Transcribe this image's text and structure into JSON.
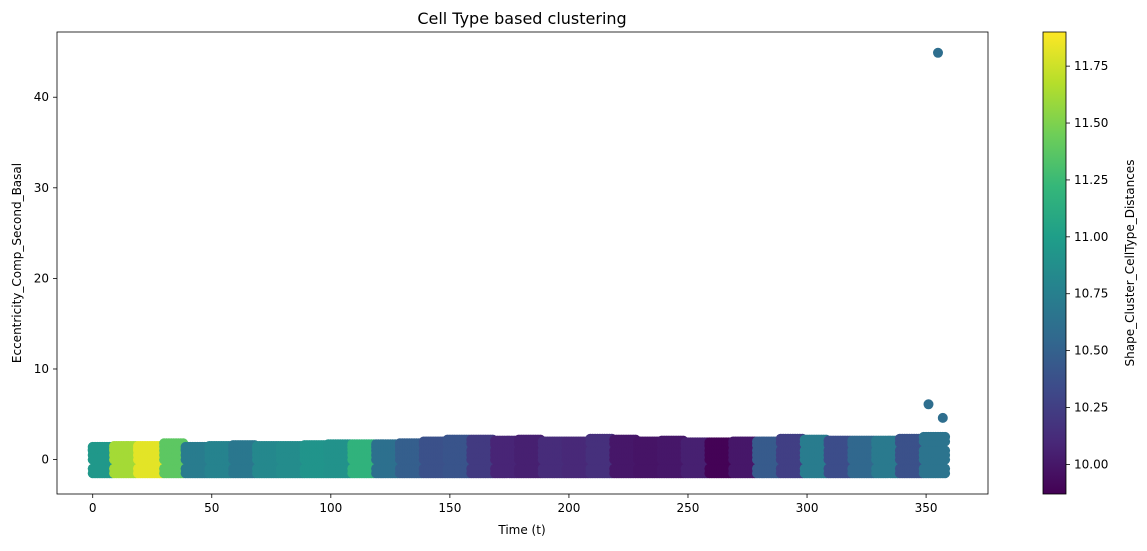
{
  "chart_data": {
    "type": "scatter",
    "title": "Cell Type based clustering",
    "xlabel": "Time (t)",
    "ylabel": "Eccentricity_Comp_Second_Basal",
    "xlim": [
      -15,
      376
    ],
    "ylim": [
      -3.8,
      47.2
    ],
    "xticks": [
      0,
      50,
      100,
      150,
      200,
      250,
      300,
      350
    ],
    "yticks": [
      0,
      10,
      20,
      30,
      40
    ],
    "grid": false,
    "colorbar": {
      "label": "Shape_Cluster_CellType_Distances",
      "colormap": "viridis",
      "range": [
        9.87,
        11.9
      ],
      "ticks": [
        10.0,
        10.25,
        10.5,
        10.75,
        11.0,
        11.25,
        11.5,
        11.75
      ],
      "tick_labels": [
        "10.00",
        "10.25",
        "10.50",
        "10.75",
        "11.00",
        "11.25",
        "11.50",
        "11.75"
      ]
    },
    "band": {
      "description_values": "per time-block color value; points span y from min to max each time step",
      "y_min": -1.5,
      "blocks": [
        {
          "t_start": 0,
          "t_end": 9,
          "c": 10.95,
          "y_max": 1.4
        },
        {
          "t_start": 9,
          "t_end": 19,
          "c": 11.62,
          "y_max": 1.5
        },
        {
          "t_start": 19,
          "t_end": 30,
          "c": 11.82,
          "y_max": 1.5
        },
        {
          "t_start": 30,
          "t_end": 39,
          "c": 11.38,
          "y_max": 1.8
        },
        {
          "t_start": 39,
          "t_end": 49,
          "c": 10.72,
          "y_max": 1.4
        },
        {
          "t_start": 49,
          "t_end": 59,
          "c": 10.78,
          "y_max": 1.5
        },
        {
          "t_start": 59,
          "t_end": 69,
          "c": 10.68,
          "y_max": 1.6
        },
        {
          "t_start": 69,
          "t_end": 79,
          "c": 10.82,
          "y_max": 1.5
        },
        {
          "t_start": 79,
          "t_end": 89,
          "c": 10.85,
          "y_max": 1.5
        },
        {
          "t_start": 89,
          "t_end": 99,
          "c": 10.92,
          "y_max": 1.6
        },
        {
          "t_start": 99,
          "t_end": 109,
          "c": 10.9,
          "y_max": 1.7
        },
        {
          "t_start": 109,
          "t_end": 119,
          "c": 11.18,
          "y_max": 1.7
        },
        {
          "t_start": 119,
          "t_end": 129,
          "c": 10.62,
          "y_max": 1.7
        },
        {
          "t_start": 129,
          "t_end": 139,
          "c": 10.48,
          "y_max": 1.8
        },
        {
          "t_start": 139,
          "t_end": 149,
          "c": 10.38,
          "y_max": 2.0
        },
        {
          "t_start": 149,
          "t_end": 159,
          "c": 10.4,
          "y_max": 2.2
        },
        {
          "t_start": 159,
          "t_end": 169,
          "c": 10.22,
          "y_max": 2.2
        },
        {
          "t_start": 169,
          "t_end": 179,
          "c": 10.08,
          "y_max": 2.1
        },
        {
          "t_start": 179,
          "t_end": 189,
          "c": 10.05,
          "y_max": 2.2
        },
        {
          "t_start": 189,
          "t_end": 199,
          "c": 10.12,
          "y_max": 2.0
        },
        {
          "t_start": 199,
          "t_end": 209,
          "c": 10.1,
          "y_max": 2.0
        },
        {
          "t_start": 209,
          "t_end": 219,
          "c": 10.15,
          "y_max": 2.3
        },
        {
          "t_start": 219,
          "t_end": 229,
          "c": 10.0,
          "y_max": 2.2
        },
        {
          "t_start": 229,
          "t_end": 239,
          "c": 9.98,
          "y_max": 2.0
        },
        {
          "t_start": 239,
          "t_end": 249,
          "c": 10.0,
          "y_max": 2.1
        },
        {
          "t_start": 249,
          "t_end": 259,
          "c": 10.05,
          "y_max": 1.9
        },
        {
          "t_start": 259,
          "t_end": 269,
          "c": 9.88,
          "y_max": 1.9
        },
        {
          "t_start": 269,
          "t_end": 279,
          "c": 10.0,
          "y_max": 2.0
        },
        {
          "t_start": 279,
          "t_end": 289,
          "c": 10.45,
          "y_max": 2.0
        },
        {
          "t_start": 289,
          "t_end": 299,
          "c": 10.25,
          "y_max": 2.3
        },
        {
          "t_start": 299,
          "t_end": 309,
          "c": 10.72,
          "y_max": 2.2
        },
        {
          "t_start": 309,
          "t_end": 319,
          "c": 10.35,
          "y_max": 2.1
        },
        {
          "t_start": 319,
          "t_end": 329,
          "c": 10.55,
          "y_max": 2.1
        },
        {
          "t_start": 329,
          "t_end": 339,
          "c": 10.7,
          "y_max": 2.1
        },
        {
          "t_start": 339,
          "t_end": 349,
          "c": 10.38,
          "y_max": 2.3
        },
        {
          "t_start": 349,
          "t_end": 359,
          "c": 10.65,
          "y_max": 2.5
        }
      ]
    },
    "outliers": [
      {
        "x": 355,
        "y": 44.9,
        "c": 10.6
      },
      {
        "x": 351,
        "y": 6.1,
        "c": 10.6
      },
      {
        "x": 357,
        "y": 4.6,
        "c": 10.6
      }
    ]
  }
}
